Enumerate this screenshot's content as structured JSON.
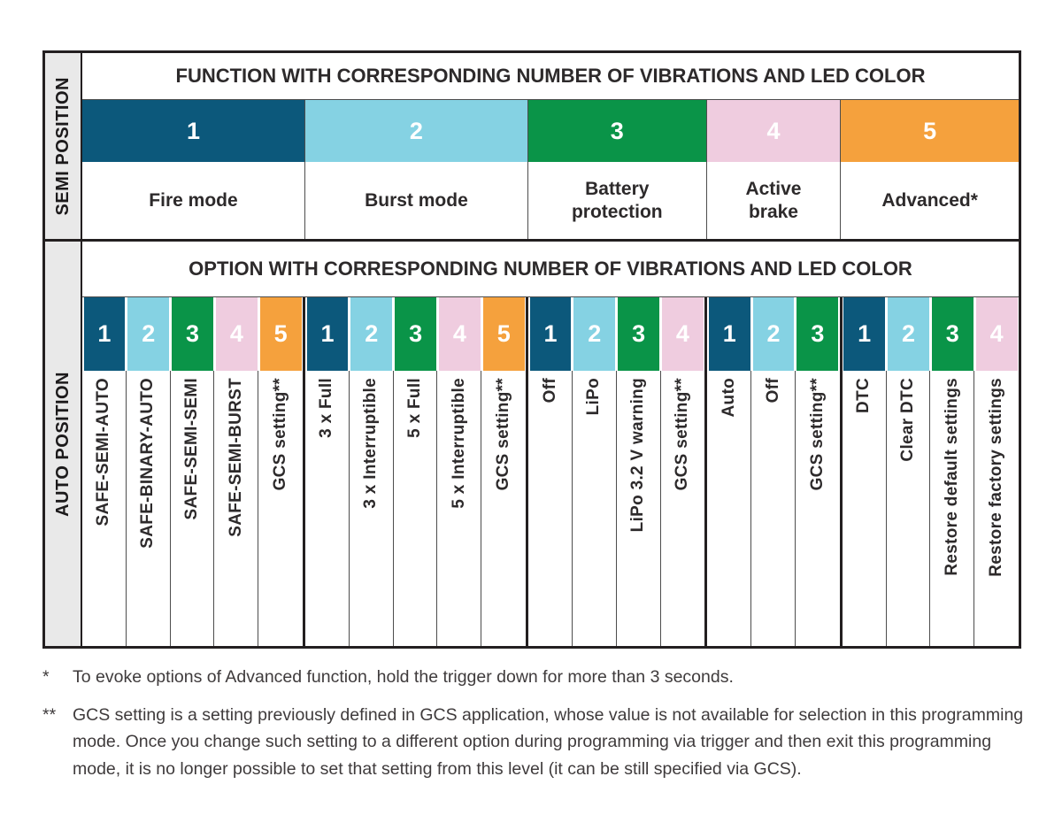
{
  "colors": {
    "darkblue": "#0C587B",
    "lightblue": "#85D2E3",
    "green": "#0A9448",
    "pink": "#EFCCDF",
    "orange": "#F5A13D",
    "strip_gray": "#E9E9E9",
    "border_dark": "#231F20"
  },
  "semi_section": {
    "side_label": "SEMI POSITION",
    "header": "FUNCTION WITH CORRESPONDING NUMBER OF VIBRATIONS AND LED COLOR",
    "functions": [
      {
        "number": "1",
        "color": "#0C587B",
        "label": "Fire mode",
        "span": 5
      },
      {
        "number": "2",
        "color": "#85D2E3",
        "label": "Burst mode",
        "span": 5
      },
      {
        "number": "3",
        "color": "#0A9448",
        "label": "Battery protection",
        "span": 4
      },
      {
        "number": "4",
        "color": "#EFCCDF",
        "label": "Active brake",
        "span": 3
      },
      {
        "number": "5",
        "color": "#F5A13D",
        "label": "Advanced*",
        "span": 4
      }
    ]
  },
  "auto_section": {
    "side_label": "AUTO POSITION",
    "header": "OPTION WITH CORRESPONDING NUMBER OF VIBRATIONS AND LED COLOR",
    "groups": [
      {
        "function": "Fire mode",
        "options": [
          {
            "number": "1",
            "color": "#0C587B",
            "label": "SAFE-SEMI-AUTO"
          },
          {
            "number": "2",
            "color": "#85D2E3",
            "label": "SAFE-BINARY-AUTO"
          },
          {
            "number": "3",
            "color": "#0A9448",
            "label": "SAFE-SEMI-SEMI"
          },
          {
            "number": "4",
            "color": "#EFCCDF",
            "label": "SAFE-SEMI-BURST"
          },
          {
            "number": "5",
            "color": "#F5A13D",
            "label": "GCS setting**"
          }
        ]
      },
      {
        "function": "Burst mode",
        "options": [
          {
            "number": "1",
            "color": "#0C587B",
            "label": "3 x Full"
          },
          {
            "number": "2",
            "color": "#85D2E3",
            "label": "3 x Interruptible"
          },
          {
            "number": "3",
            "color": "#0A9448",
            "label": "5 x Full"
          },
          {
            "number": "4",
            "color": "#EFCCDF",
            "label": "5 x Interruptible"
          },
          {
            "number": "5",
            "color": "#F5A13D",
            "label": "GCS setting**"
          }
        ]
      },
      {
        "function": "Battery protection",
        "options": [
          {
            "number": "1",
            "color": "#0C587B",
            "label": "Off"
          },
          {
            "number": "2",
            "color": "#85D2E3",
            "label": "LiPo"
          },
          {
            "number": "3",
            "color": "#0A9448",
            "label": "LiPo 3.2 V warning"
          },
          {
            "number": "4",
            "color": "#EFCCDF",
            "label": "GCS setting**"
          }
        ]
      },
      {
        "function": "Active brake",
        "options": [
          {
            "number": "1",
            "color": "#0C587B",
            "label": "Auto"
          },
          {
            "number": "2",
            "color": "#85D2E3",
            "label": "Off"
          },
          {
            "number": "3",
            "color": "#0A9448",
            "label": "GCS setting**"
          }
        ]
      },
      {
        "function": "Advanced",
        "options": [
          {
            "number": "1",
            "color": "#0C587B",
            "label": "DTC"
          },
          {
            "number": "2",
            "color": "#85D2E3",
            "label": "Clear DTC"
          },
          {
            "number": "3",
            "color": "#0A9448",
            "label": "Restore default settings"
          },
          {
            "number": "4",
            "color": "#EFCCDF",
            "label": "Restore factory settings"
          }
        ]
      }
    ]
  },
  "footnotes": [
    {
      "marker": "*",
      "text": "To evoke options of Advanced function, hold the trigger down for more than 3 seconds."
    },
    {
      "marker": "**",
      "text": "GCS setting is a setting previously defined in GCS application, whose value is not available for selection in this programming mode. Once you change such setting to a different option during programming via trigger and then exit this programming mode, it is no longer possible to set that setting from this level (it can be still specified via GCS)."
    }
  ]
}
